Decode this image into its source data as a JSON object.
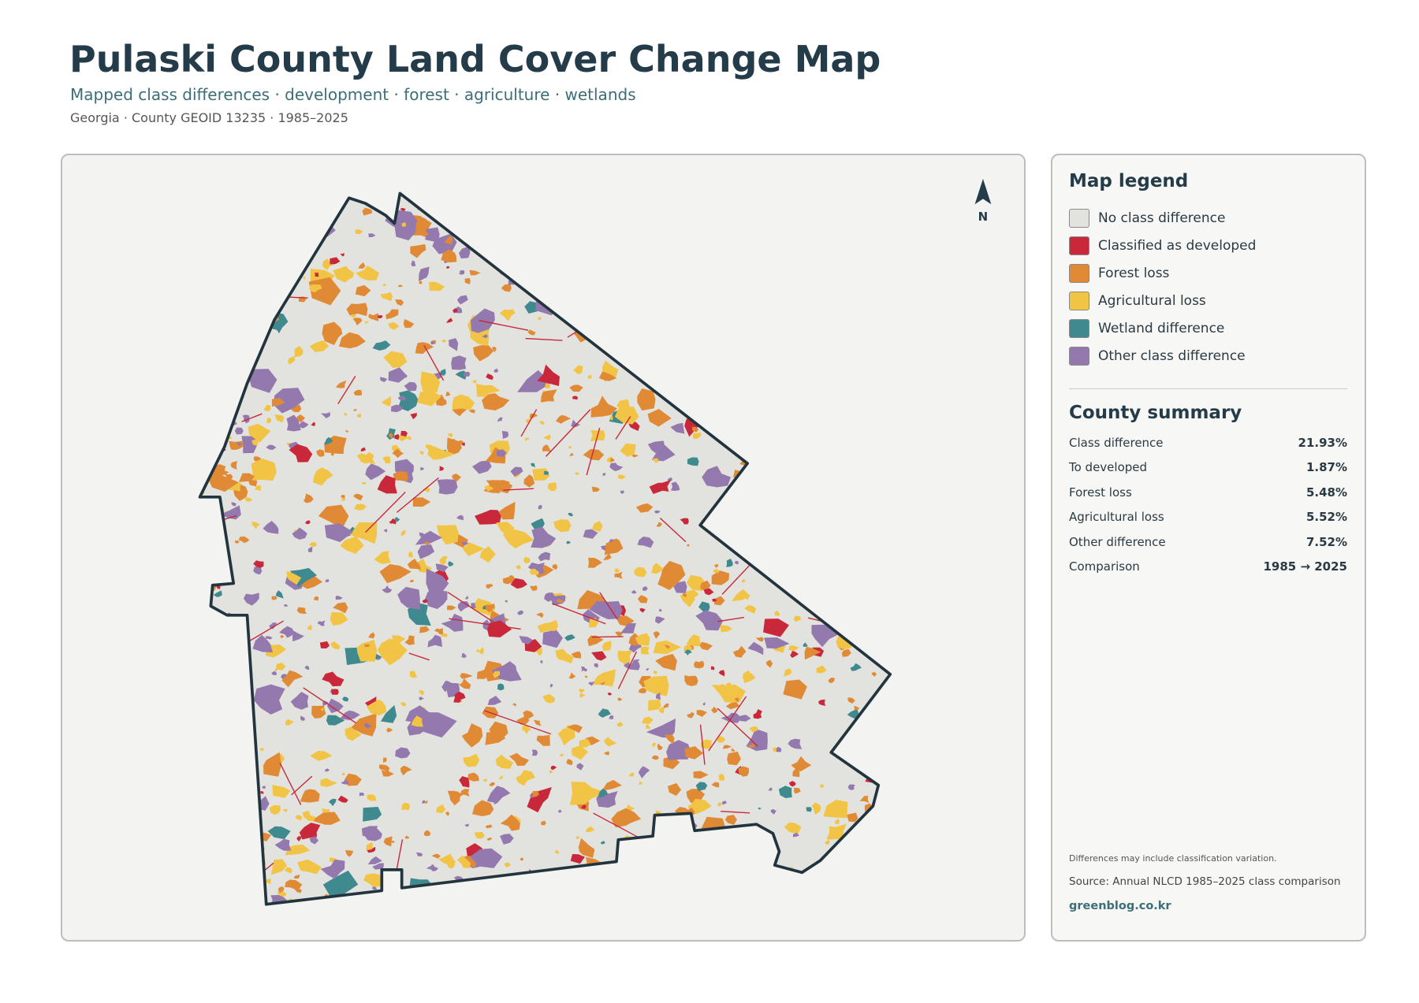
{
  "header": {
    "title": "Pulaski County Land Cover Change Map",
    "subtitle": "Mapped class differences · development · forest · agriculture · wetlands",
    "meta": "Georgia · County GEOID 13235 · 1985–2025"
  },
  "map": {
    "north_label": "N"
  },
  "legend": {
    "title": "Map legend",
    "items": [
      {
        "label": "No class difference",
        "color": "#e2e2de"
      },
      {
        "label": "Classified as developed",
        "color": "#c8283a"
      },
      {
        "label": "Forest loss",
        "color": "#e08a35"
      },
      {
        "label": "Agricultural loss",
        "color": "#f2c445"
      },
      {
        "label": "Wetland difference",
        "color": "#3f8a8e"
      },
      {
        "label": "Other class difference",
        "color": "#9479ae"
      }
    ]
  },
  "summary": {
    "title": "County summary",
    "rows": [
      {
        "label": "Class difference",
        "value": "21.93%"
      },
      {
        "label": "To developed",
        "value": "1.87%"
      },
      {
        "label": "Forest loss",
        "value": "5.48%"
      },
      {
        "label": "Agricultural loss",
        "value": "5.52%"
      },
      {
        "label": "Other difference",
        "value": "7.52%"
      },
      {
        "label": "Comparison",
        "value": "1985 → 2025"
      }
    ]
  },
  "notes": {
    "caveat": "Differences may include classification variation.",
    "source": "Source: Annual NLCD 1985–2025 class comparison",
    "site": "greenblog.co.kr"
  }
}
